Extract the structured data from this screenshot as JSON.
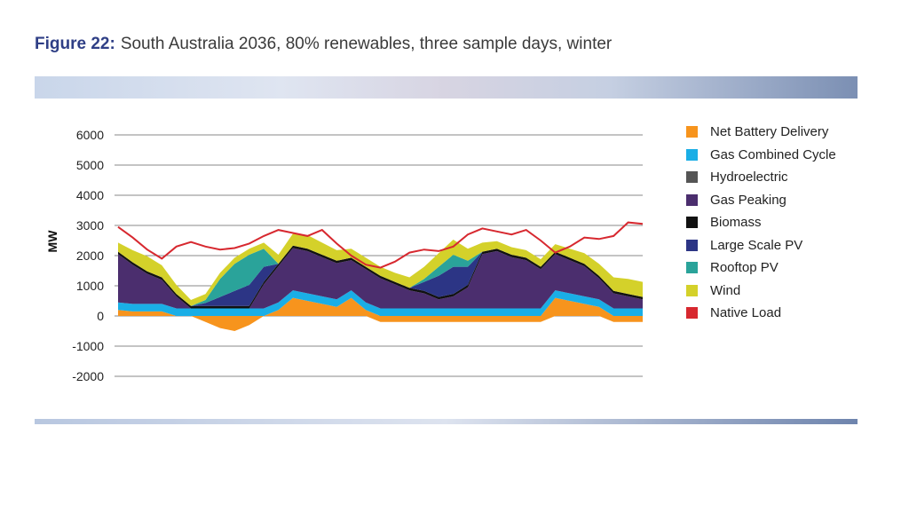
{
  "figure": {
    "label": "Figure 22:",
    "title": "South Australia 2036, 80% renewables, three sample days, winter"
  },
  "chart_data": {
    "type": "area",
    "ylabel": "MW",
    "xlabel": "",
    "ylim": [
      -2000,
      6000
    ],
    "yticks": [
      6000,
      5000,
      4000,
      3000,
      2000,
      1000,
      0,
      -1000,
      -2000
    ],
    "grid": true,
    "legend_position": "right",
    "x": [
      0,
      2,
      4,
      6,
      8,
      10,
      12,
      14,
      16,
      18,
      20,
      22,
      24,
      26,
      28,
      30,
      32,
      34,
      36,
      38,
      40,
      42,
      44,
      46,
      48,
      50,
      52,
      54,
      56,
      58,
      60,
      62,
      64,
      66,
      68,
      70,
      72
    ],
    "series": [
      {
        "name": "Net Battery Delivery",
        "color": "#f7941d",
        "values": [
          200,
          150,
          150,
          150,
          0,
          0,
          -200,
          -400,
          -500,
          -300,
          0,
          200,
          600,
          500,
          400,
          300,
          600,
          200,
          -200,
          -200,
          -200,
          -200,
          -200,
          -200,
          -200,
          -200,
          -200,
          -200,
          -200,
          -200,
          600,
          500,
          400,
          300,
          -200,
          -200,
          -200
        ]
      },
      {
        "name": "Gas Combined Cycle",
        "color": "#1aaee6",
        "values": [
          250,
          250,
          250,
          250,
          250,
          250,
          250,
          250,
          250,
          250,
          250,
          250,
          250,
          250,
          250,
          250,
          250,
          250,
          250,
          250,
          250,
          250,
          250,
          250,
          250,
          250,
          250,
          250,
          250,
          250,
          250,
          250,
          250,
          250,
          250,
          250,
          250
        ]
      },
      {
        "name": "Hydroelectric",
        "color": "#555555",
        "values": [
          0,
          0,
          0,
          0,
          0,
          0,
          0,
          0,
          0,
          0,
          0,
          0,
          0,
          0,
          0,
          0,
          0,
          0,
          0,
          0,
          0,
          0,
          0,
          0,
          0,
          0,
          0,
          0,
          0,
          0,
          0,
          0,
          0,
          0,
          0,
          0,
          0
        ]
      },
      {
        "name": "Gas Peaking",
        "color": "#4b2e6e",
        "values": [
          1600,
          1300,
          1000,
          800,
          400,
          0,
          0,
          0,
          0,
          0,
          800,
          1200,
          1400,
          1400,
          1300,
          1200,
          1000,
          1100,
          1000,
          800,
          600,
          500,
          300,
          400,
          700,
          1800,
          1900,
          1700,
          1600,
          1300,
          1200,
          1100,
          1000,
          700,
          500,
          400,
          300
        ]
      },
      {
        "name": "Biomass",
        "color": "#111111",
        "values": [
          80,
          80,
          80,
          80,
          80,
          80,
          80,
          80,
          80,
          80,
          80,
          80,
          80,
          80,
          80,
          80,
          80,
          80,
          80,
          80,
          80,
          80,
          80,
          80,
          80,
          80,
          80,
          80,
          80,
          80,
          80,
          80,
          80,
          80,
          80,
          80,
          80
        ]
      },
      {
        "name": "Large Scale PV",
        "color": "#2c3585",
        "values": [
          0,
          0,
          0,
          0,
          0,
          0,
          100,
          300,
          500,
          700,
          500,
          0,
          0,
          0,
          0,
          0,
          0,
          0,
          0,
          0,
          0,
          300,
          700,
          900,
          600,
          0,
          0,
          0,
          0,
          0,
          0,
          0,
          0,
          0,
          0,
          0,
          0
        ]
      },
      {
        "name": "Rooftop PV",
        "color": "#2aa39a",
        "values": [
          0,
          0,
          0,
          0,
          0,
          0,
          100,
          600,
          900,
          1000,
          600,
          0,
          0,
          0,
          0,
          0,
          0,
          0,
          0,
          0,
          0,
          100,
          300,
          400,
          200,
          0,
          0,
          0,
          0,
          0,
          0,
          0,
          0,
          0,
          0,
          0,
          0
        ]
      },
      {
        "name": "Wind",
        "color": "#d4d12a",
        "values": [
          300,
          400,
          500,
          400,
          300,
          200,
          200,
          200,
          200,
          200,
          200,
          300,
          400,
          450,
          400,
          350,
          300,
          300,
          300,
          300,
          350,
          400,
          450,
          500,
          400,
          300,
          250,
          250,
          250,
          250,
          250,
          300,
          350,
          400,
          450,
          500,
          500
        ]
      },
      {
        "name": "Native Load",
        "color": "#d7282f",
        "type": "line",
        "values": [
          2950,
          2600,
          2200,
          1900,
          2300,
          2450,
          2300,
          2200,
          2250,
          2400,
          2650,
          2850,
          2750,
          2650,
          2850,
          2400,
          2000,
          1700,
          1600,
          1800,
          2100,
          2200,
          2150,
          2300,
          2700,
          2900,
          2800,
          2700,
          2850,
          2500,
          2100,
          2300,
          2600,
          2550,
          2650,
          3100,
          3050
        ]
      }
    ]
  }
}
